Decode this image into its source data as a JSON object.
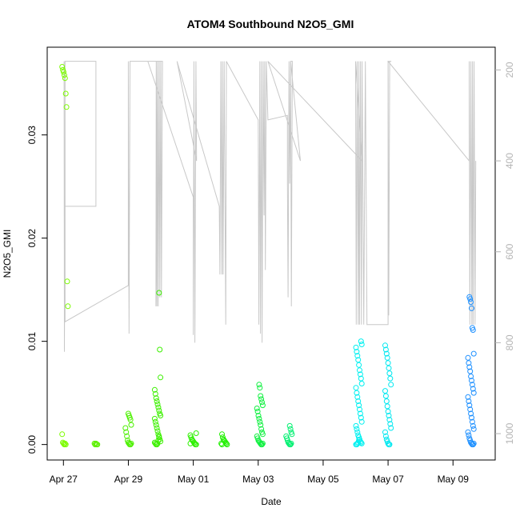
{
  "chart_data": {
    "type": "scatter",
    "title": "ATOM4 Southbound N2O5_GMI",
    "xlabel": "Date",
    "ylabel": "N2O5_GMI",
    "x_ticks": [
      "Apr 27",
      "Apr 29",
      "May 01",
      "May 03",
      "May 05",
      "May 07",
      "May 09"
    ],
    "x_tick_days": [
      0,
      2,
      4,
      6,
      8,
      10,
      12
    ],
    "xlim_days": [
      -0.5,
      13.3
    ],
    "x_reference_date": "Apr 27",
    "y_ticks": [
      "0.00",
      "0.01",
      "0.02",
      "0.03"
    ],
    "y_tick_values": [
      0,
      0.01,
      0.02,
      0.03
    ],
    "ylim": [
      -0.0015,
      0.0385
    ],
    "y2_ticks": [
      "200",
      "400",
      "600",
      "800",
      "1000"
    ],
    "y2_tick_values": [
      200,
      400,
      600,
      800,
      1000
    ],
    "y2lim": [
      1058,
      150
    ],
    "y2_color": "#b4b4b4",
    "pressure_line_color": "#c8c8c8",
    "grid": false,
    "clusters": [
      {
        "day": 0.05,
        "color": "#7cfc00",
        "values": [
          0.0366,
          0.0363,
          0.0361,
          0.0358,
          0.0355,
          0.034,
          0.0327,
          0.0158,
          0.0134,
          0.001,
          0.0002,
          0.0001,
          0.0,
          0.0001,
          0.0
        ]
      },
      {
        "day": 1.0,
        "color": "#5cf000",
        "values": [
          0.0001,
          0.0,
          0.0001,
          0.0,
          0.0
        ]
      },
      {
        "day": 2.0,
        "color": "#4cf000",
        "values": [
          0.003,
          0.0028,
          0.0026,
          0.0024,
          0.0019,
          0.0016,
          0.0012,
          0.0008,
          0.0004,
          0.0002,
          0.0001,
          0.0,
          0.0,
          0.0001
        ]
      },
      {
        "day": 2.9,
        "color": "#3cf000",
        "values": [
          0.0147,
          0.0092,
          0.0065,
          0.0053,
          0.0049,
          0.0045,
          0.0042,
          0.0039,
          0.0036,
          0.0033,
          0.003,
          0.0028,
          0.0025,
          0.0022,
          0.0019,
          0.0016,
          0.0013,
          0.001,
          0.0008,
          0.0005,
          0.0003,
          0.0002,
          0.0001,
          0.0,
          0.0,
          0.0001,
          0.0004,
          0.0007
        ]
      },
      {
        "day": 4.0,
        "color": "#2ef000",
        "values": [
          0.0011,
          0.0009,
          0.0007,
          0.0005,
          0.0004,
          0.0003,
          0.0002,
          0.0001,
          0.0,
          0.0,
          0.0001
        ]
      },
      {
        "day": 4.95,
        "color": "#20f000",
        "values": [
          0.001,
          0.0007,
          0.0005,
          0.0004,
          0.0003,
          0.0002,
          0.0001,
          0.0,
          0.0001,
          0.0
        ]
      },
      {
        "day": 6.05,
        "color": "#10f040",
        "values": [
          0.0058,
          0.0055,
          0.0047,
          0.0044,
          0.0041,
          0.0038,
          0.0035,
          0.0032,
          0.0028,
          0.0025,
          0.0022,
          0.0019,
          0.0015,
          0.0012,
          0.001,
          0.0008,
          0.0006,
          0.0004,
          0.0003,
          0.0002,
          0.0001,
          0.0,
          0.0,
          0.0001
        ]
      },
      {
        "day": 6.95,
        "color": "#00f070",
        "values": [
          0.0018,
          0.0015,
          0.0012,
          0.001,
          0.0008,
          0.0006,
          0.0004,
          0.0002,
          0.0001,
          0.0,
          0.0,
          0.0001
        ]
      },
      {
        "day": 9.1,
        "color": "#00f0f0",
        "values": [
          0.01,
          0.0097,
          0.0094,
          0.009,
          0.0086,
          0.0082,
          0.0077,
          0.0072,
          0.0068,
          0.0064,
          0.0059,
          0.0055,
          0.005,
          0.0046,
          0.0042,
          0.0038,
          0.0034,
          0.003,
          0.0026,
          0.0022,
          0.0018,
          0.0015,
          0.0012,
          0.0009,
          0.0007,
          0.0005,
          0.0003,
          0.0002,
          0.0001,
          0.0,
          0.0,
          0.0001,
          0.0002,
          0.0004
        ]
      },
      {
        "day": 10.0,
        "color": "#00e8f0",
        "values": [
          0.0096,
          0.0092,
          0.0088,
          0.0084,
          0.0079,
          0.0074,
          0.0069,
          0.0064,
          0.0058,
          0.0052,
          0.0047,
          0.0042,
          0.0037,
          0.0032,
          0.0028,
          0.0024,
          0.002,
          0.0016,
          0.0012,
          0.0008,
          0.0005,
          0.0003,
          0.0001,
          0.0,
          0.0
        ]
      },
      {
        "day": 12.55,
        "color": "#1e90ff",
        "values": [
          0.0143,
          0.0141,
          0.0138,
          0.0132,
          0.0113,
          0.0111,
          0.0088,
          0.0084,
          0.0079,
          0.0075,
          0.0071,
          0.0066,
          0.0062,
          0.0058,
          0.0054,
          0.005,
          0.0046,
          0.0042,
          0.0038,
          0.0034,
          0.003,
          0.0026,
          0.0022,
          0.0018,
          0.0015,
          0.0012,
          0.0009,
          0.0006,
          0.0004,
          0.0002,
          0.0001,
          0.0,
          0.0,
          0.0001
        ]
      }
    ],
    "pressure_line": [
      [
        0.02,
        181
      ],
      [
        0.03,
        820
      ],
      [
        0.05,
        500
      ],
      [
        1.0,
        500
      ],
      [
        1.0,
        181
      ],
      [
        0.05,
        181
      ],
      [
        0.05,
        754
      ],
      [
        2.0,
        674
      ],
      [
        2.0,
        181
      ],
      [
        2.02,
        780
      ],
      [
        2.05,
        181
      ],
      [
        2.9,
        181
      ],
      [
        2.85,
        720
      ],
      [
        2.86,
        181
      ],
      [
        2.88,
        720
      ],
      [
        2.9,
        181
      ],
      [
        2.92,
        720
      ],
      [
        2.95,
        181
      ],
      [
        2.97,
        700
      ],
      [
        3.0,
        181
      ],
      [
        3.02,
        700
      ],
      [
        3.05,
        181
      ],
      [
        2.6,
        181
      ],
      [
        4.0,
        480
      ],
      [
        4.0,
        783
      ],
      [
        4.02,
        181
      ],
      [
        4.05,
        800
      ],
      [
        4.08,
        181
      ],
      [
        4.1,
        400
      ],
      [
        3.5,
        181
      ],
      [
        4.8,
        500
      ],
      [
        4.82,
        650
      ],
      [
        4.85,
        181
      ],
      [
        4.88,
        650
      ],
      [
        4.9,
        181
      ],
      [
        4.92,
        650
      ],
      [
        4.95,
        181
      ],
      [
        5.0,
        760
      ],
      [
        5.02,
        181
      ],
      [
        6.0,
        310
      ],
      [
        6.02,
        760
      ],
      [
        6.05,
        181
      ],
      [
        6.07,
        780
      ],
      [
        6.1,
        181
      ],
      [
        6.12,
        800
      ],
      [
        6.15,
        181
      ],
      [
        6.18,
        520
      ],
      [
        6.2,
        181
      ],
      [
        6.22,
        640
      ],
      [
        6.25,
        181
      ],
      [
        6.3,
        310
      ],
      [
        6.9,
        300
      ],
      [
        6.9,
        450
      ],
      [
        6.92,
        700
      ],
      [
        6.95,
        181
      ],
      [
        6.97,
        450
      ],
      [
        7.0,
        181
      ],
      [
        7.02,
        720
      ],
      [
        7.05,
        181
      ],
      [
        7.0,
        181
      ],
      [
        7.3,
        400
      ],
      [
        6.3,
        181
      ],
      [
        9.2,
        400
      ],
      [
        9.0,
        181
      ],
      [
        9.02,
        760
      ],
      [
        9.05,
        181
      ],
      [
        9.08,
        760
      ],
      [
        9.1,
        181
      ],
      [
        9.12,
        760
      ],
      [
        9.15,
        181
      ],
      [
        9.18,
        760
      ],
      [
        9.2,
        181
      ],
      [
        9.25,
        760
      ],
      [
        9.3,
        181
      ],
      [
        9.35,
        760
      ],
      [
        9.38,
        760
      ],
      [
        10.0,
        760
      ],
      [
        10.0,
        181
      ],
      [
        10.02,
        740
      ],
      [
        10.05,
        181
      ],
      [
        10.1,
        181
      ],
      [
        10.0,
        181
      ],
      [
        12.5,
        400
      ],
      [
        12.5,
        181
      ],
      [
        12.52,
        760
      ],
      [
        12.55,
        181
      ],
      [
        12.58,
        760
      ],
      [
        12.6,
        181
      ],
      [
        12.62,
        760
      ],
      [
        12.65,
        181
      ],
      [
        12.68,
        760
      ],
      [
        12.7,
        400
      ]
    ]
  }
}
